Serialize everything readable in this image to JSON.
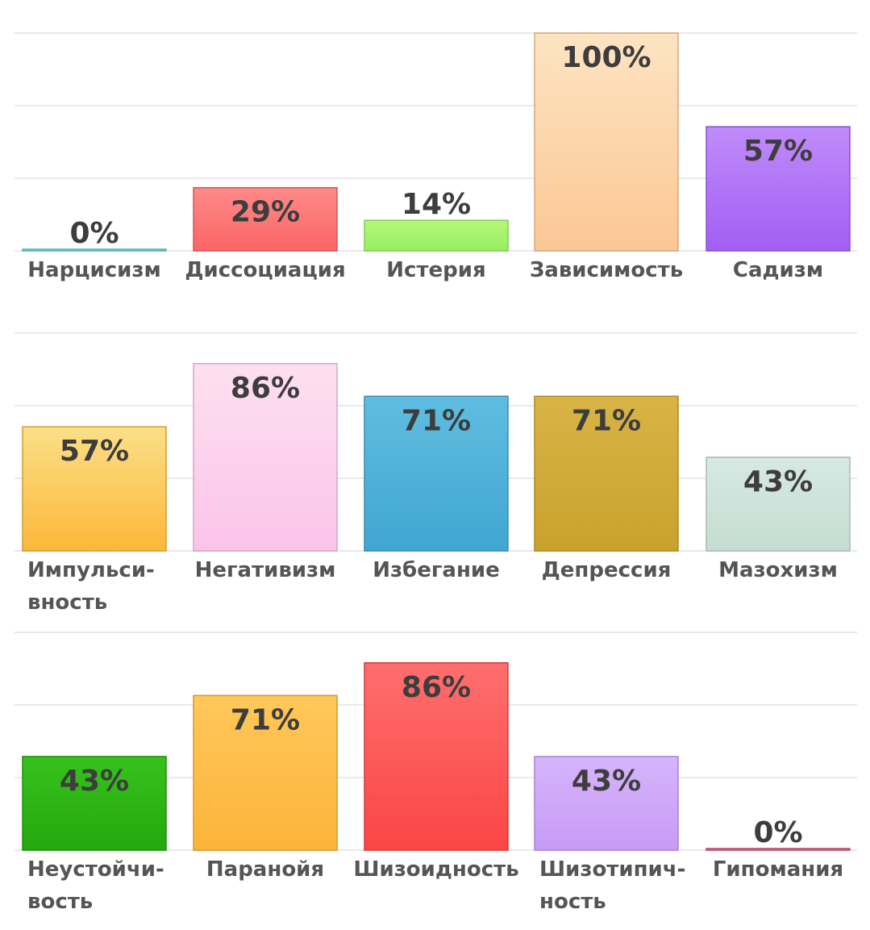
{
  "chart_data": [
    {
      "type": "bar",
      "title": "",
      "xlabel": "",
      "ylabel": "",
      "ylim": [
        0,
        100
      ],
      "grid": true,
      "value_format": "{v}%",
      "categories": [
        "Нарцисизм",
        "Диссоциация",
        "Истерия",
        "Зависимость",
        "Садизм"
      ],
      "values": [
        0,
        29,
        14,
        100,
        57
      ],
      "colors": [
        [
          "#8ee4e4",
          "#5fcfcf"
        ],
        [
          "#ff8a8a",
          "#fb6565"
        ],
        [
          "#b7f77a",
          "#96ef60"
        ],
        [
          "#fde4c2",
          "#fbc794"
        ],
        [
          "#c08bfa",
          "#a25ef3"
        ]
      ]
    },
    {
      "type": "bar",
      "title": "",
      "xlabel": "",
      "ylabel": "",
      "ylim": [
        0,
        100
      ],
      "grid": true,
      "value_format": "{v}%",
      "categories": [
        "Импульси-\nвность",
        "Негативизм",
        "Избегание",
        "Депрессия",
        "Мазохизм"
      ],
      "values": [
        57,
        86,
        71,
        71,
        43
      ],
      "colors": [
        [
          "#fbe088",
          "#fcb73a"
        ],
        [
          "#fde0f0",
          "#fbc4ea"
        ],
        [
          "#5fbde0",
          "#41a6d2"
        ],
        [
          "#d8b446",
          "#c9a22c"
        ],
        [
          "#d6e9e2",
          "#c5ddd3"
        ]
      ]
    },
    {
      "type": "bar",
      "title": "",
      "xlabel": "",
      "ylabel": "",
      "ylim": [
        0,
        100
      ],
      "grid": true,
      "value_format": "{v}%",
      "categories": [
        "Неустойчи-\nвость",
        "Паранойя",
        "Шизоидность",
        "Шизотипич-\nность",
        "Гипомания"
      ],
      "values": [
        43,
        71,
        86,
        43,
        0
      ],
      "colors": [
        [
          "#36c21c",
          "#25a80d"
        ],
        [
          "#ffc75a",
          "#fcb43a"
        ],
        [
          "#ff6e6e",
          "#fb4545"
        ],
        [
          "#d7b4fb",
          "#c79bf6"
        ],
        [
          "#f09ab0",
          "#d9587a"
        ]
      ]
    }
  ]
}
